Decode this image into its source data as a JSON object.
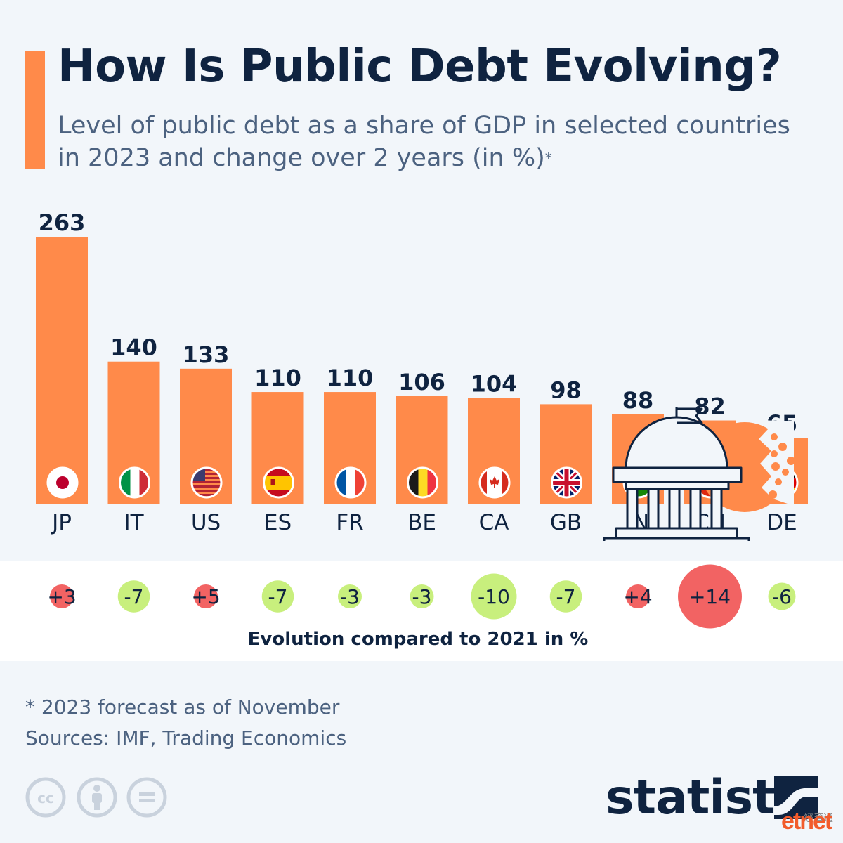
{
  "header": {
    "title": "How Is Public Debt Evolving?",
    "subtitle": "Level of public debt as a share of GDP in selected countries in 2023 and change over 2 years (in %)",
    "note_mark": "*"
  },
  "chart_data": {
    "type": "bar",
    "categories": [
      "JP",
      "IT",
      "US",
      "ES",
      "FR",
      "BE",
      "CA",
      "GB",
      "IN",
      "CN",
      "DE"
    ],
    "values": [
      263,
      140,
      133,
      110,
      110,
      106,
      104,
      98,
      88,
      82,
      65
    ],
    "change_vs_2021": [
      3,
      -7,
      5,
      -7,
      -3,
      -3,
      -10,
      -7,
      4,
      14,
      -6
    ],
    "change_labels": [
      "+3",
      "-7",
      "+5",
      "-7",
      "-3",
      "-3",
      "-10",
      "-7",
      "+4",
      "+14",
      "-6"
    ],
    "change_title": "Evolution compared to 2021 in %",
    "bar_color": "#ff8a4a",
    "increase_color": "#f26363",
    "decrease_color": "#c8ef7d",
    "flag_icons": [
      "japan-flag-icon",
      "italy-flag-icon",
      "usa-flag-icon",
      "spain-flag-icon",
      "france-flag-icon",
      "belgium-flag-icon",
      "canada-flag-icon",
      "uk-flag-icon",
      "india-flag-icon",
      "china-flag-icon",
      "germany-flag-icon"
    ],
    "ylim": [
      0,
      263
    ]
  },
  "illustration": {
    "icon": "government-building-debt-icon"
  },
  "footer": {
    "footnote": "* 2023 forecast as of November",
    "sources": "Sources: IMF, Trading Economics",
    "brand": "statista",
    "license_icons": [
      "cc-icon",
      "attribution-icon",
      "no-derivatives-icon"
    ],
    "watermark": "etnet",
    "watermark_cn": "經濟通"
  },
  "colors": {
    "title": "#0f2340",
    "text": "#4c6280",
    "background": "#f2f6fa"
  }
}
